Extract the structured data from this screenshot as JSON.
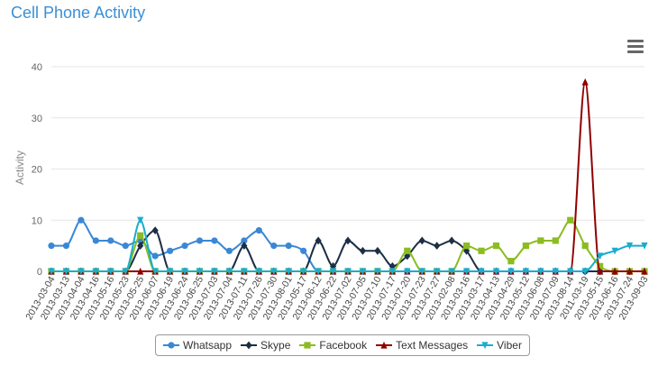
{
  "title": "Cell Phone Activity",
  "menu_icon": "hamburger-menu-icon",
  "chart_data": {
    "type": "line",
    "title": "Cell Phone Activity",
    "xlabel": "",
    "ylabel": "Activity",
    "ylim": [
      0,
      40
    ],
    "yticks": [
      0,
      10,
      20,
      30,
      40
    ],
    "grid": true,
    "legend_position": "bottom",
    "categories": [
      "2013-03-04",
      "2013-03-13",
      "2013-04-04",
      "2013-04-16",
      "2013-05-16",
      "2013-05-23",
      "2013-05-25",
      "2013-06-07",
      "2013-06-19",
      "2013-06-24",
      "2013-06-25",
      "2013-07-03",
      "2013-07-04",
      "2013-07-11",
      "2013-07-26",
      "2013-07-30",
      "2013-08-01",
      "2013-05-17",
      "2013-06-12",
      "2013-06-22",
      "2013-07-02",
      "2013-07-05",
      "2013-07-10",
      "2013-07-17",
      "2013-07-20",
      "2013-07-23",
      "2013-07-27",
      "2013-02-08",
      "2013-03-16",
      "2013-03-17",
      "2013-04-13",
      "2013-04-29",
      "2013-05-12",
      "2013-06-08",
      "2013-07-09",
      "2013-08-14",
      "2011-03-19",
      "2013-05-15",
      "2013-06-16",
      "2013-07-24",
      "2013-09-03"
    ],
    "series": [
      {
        "name": "Whatsapp",
        "color": "#3a87d6",
        "marker": "circle",
        "values": [
          5,
          5,
          10,
          6,
          6,
          5,
          6,
          3,
          4,
          5,
          6,
          6,
          4,
          6,
          8,
          5,
          5,
          4,
          0,
          0,
          0,
          0,
          0,
          0,
          0,
          0,
          0,
          0,
          0,
          0,
          0,
          0,
          0,
          0,
          0,
          0,
          0,
          0,
          0,
          0,
          0
        ]
      },
      {
        "name": "Skype",
        "color": "#1c2f44",
        "marker": "diamond",
        "values": [
          0,
          0,
          0,
          0,
          0,
          0,
          5,
          8,
          0,
          0,
          0,
          0,
          0,
          5,
          0,
          0,
          0,
          0,
          6,
          1,
          6,
          4,
          4,
          1,
          3,
          6,
          5,
          6,
          4,
          0,
          0,
          0,
          0,
          0,
          0,
          0,
          0,
          0,
          0,
          0,
          0
        ]
      },
      {
        "name": "Facebook",
        "color": "#8bbc21",
        "marker": "square",
        "values": [
          0,
          0,
          0,
          0,
          0,
          0,
          7,
          0,
          0,
          0,
          0,
          0,
          0,
          0,
          0,
          0,
          0,
          0,
          0,
          0,
          0,
          0,
          0,
          0,
          4,
          0,
          0,
          0,
          5,
          4,
          5,
          2,
          5,
          6,
          6,
          10,
          5,
          1,
          0,
          0,
          0
        ]
      },
      {
        "name": "Text Messages",
        "color": "#910000",
        "marker": "triangle",
        "values": [
          0,
          0,
          0,
          0,
          0,
          0,
          0,
          0,
          0,
          0,
          0,
          0,
          0,
          0,
          0,
          0,
          0,
          0,
          0,
          0,
          0,
          0,
          0,
          0,
          0,
          0,
          0,
          0,
          0,
          0,
          0,
          0,
          0,
          0,
          0,
          0,
          37,
          0,
          0,
          0,
          0
        ]
      },
      {
        "name": "Viber",
        "color": "#1aadce",
        "marker": "triangle-down",
        "values": [
          0,
          0,
          0,
          0,
          0,
          0,
          10,
          0,
          0,
          0,
          0,
          0,
          0,
          0,
          0,
          0,
          0,
          0,
          0,
          0,
          0,
          0,
          0,
          0,
          0,
          0,
          0,
          0,
          0,
          0,
          0,
          0,
          0,
          0,
          0,
          0,
          0,
          3,
          4,
          5,
          5
        ]
      }
    ]
  }
}
